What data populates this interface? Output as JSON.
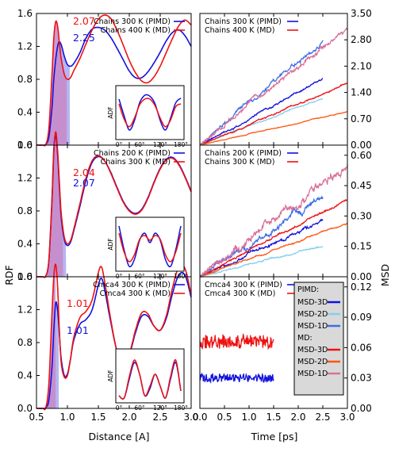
{
  "colors": {
    "blue": "#1111dd",
    "red": "#ee1111",
    "lightblue": "#87ceeb",
    "midblue": "#3d6ee6",
    "orange": "#ff5511",
    "pink": "#d9709a",
    "fill_red": "#c888c8",
    "fill_blue": "#a8a8ee",
    "legend_box": "#d9d9d9"
  },
  "labels": {
    "rdf_ylabel": "RDF",
    "msd_ylabel": "MSD",
    "distance_xlabel": "Distance [A]",
    "time_xlabel": "Time [ps]",
    "adf_label": "ADF"
  },
  "chart_data": [
    {
      "type": "line",
      "panel": "rdf-top",
      "xlim": [
        0.5,
        3.0
      ],
      "ylim": [
        0.0,
        1.6
      ],
      "xticks": [
        "0.5",
        "1.0",
        "1.5",
        "2.0",
        "2.5",
        "3.0"
      ],
      "yticks": [
        "0.0",
        "0.4",
        "0.8",
        "1.2",
        "1.6"
      ],
      "legend": [
        "Chains 300 K (PIMD)",
        "Chains 400 K (MD)"
      ],
      "annotations": [
        {
          "text": "2.07",
          "color": "red"
        },
        {
          "text": "2.25",
          "color": "blue"
        }
      ],
      "series": [
        {
          "name": "Chains 300 K (PIMD)",
          "x": [
            0.5,
            0.6,
            0.65,
            0.7,
            0.75,
            0.78,
            0.82,
            0.86,
            0.9,
            0.95,
            1.0,
            1.05,
            1.1,
            1.2,
            1.3,
            1.4,
            1.5,
            1.6,
            1.7,
            1.8,
            1.9,
            2.0,
            2.1,
            2.2,
            2.3,
            2.4,
            2.5,
            2.6,
            2.7,
            2.8,
            2.9,
            3.0
          ],
          "y": [
            0.0,
            0.0,
            0.01,
            0.1,
            0.45,
            0.8,
            1.1,
            1.25,
            1.22,
            1.08,
            0.98,
            0.96,
            0.99,
            1.12,
            1.3,
            1.41,
            1.43,
            1.4,
            1.31,
            1.18,
            1.04,
            0.9,
            0.82,
            0.82,
            0.89,
            1.0,
            1.13,
            1.27,
            1.37,
            1.4,
            1.33,
            1.2
          ]
        },
        {
          "name": "Chains 400 K (MD)",
          "x": [
            0.5,
            0.6,
            0.65,
            0.7,
            0.75,
            0.78,
            0.81,
            0.84,
            0.87,
            0.9,
            0.95,
            1.0,
            1.05,
            1.1,
            1.2,
            1.3,
            1.4,
            1.5,
            1.6,
            1.7,
            1.8,
            1.9,
            2.0,
            2.1,
            2.2,
            2.3,
            2.4,
            2.5,
            2.6,
            2.7,
            2.8,
            2.9,
            3.0
          ],
          "y": [
            0.0,
            0.0,
            0.01,
            0.2,
            0.85,
            1.3,
            1.5,
            1.45,
            1.25,
            1.05,
            0.86,
            0.8,
            0.82,
            0.9,
            1.05,
            1.23,
            1.4,
            1.53,
            1.58,
            1.54,
            1.4,
            1.22,
            1.03,
            0.88,
            0.78,
            0.76,
            0.83,
            0.96,
            1.13,
            1.3,
            1.45,
            1.52,
            1.46
          ]
        }
      ],
      "inset": {
        "xticks": [
          "0°",
          "60°",
          "120°",
          "180°"
        ],
        "series": [
          {
            "name": "blue",
            "x": [
              0,
              15,
              30,
              45,
              60,
              75,
              90,
              105,
              120,
              135,
              150,
              165,
              180
            ],
            "y": [
              0.8,
              0.45,
              0.15,
              0.35,
              0.72,
              0.88,
              0.86,
              0.7,
              0.35,
              0.15,
              0.4,
              0.72,
              0.82
            ]
          },
          {
            "name": "red",
            "x": [
              0,
              15,
              30,
              45,
              60,
              75,
              90,
              105,
              120,
              135,
              150,
              165,
              180
            ],
            "y": [
              0.7,
              0.38,
              0.22,
              0.4,
              0.68,
              0.8,
              0.8,
              0.66,
              0.4,
              0.22,
              0.36,
              0.64,
              0.7
            ]
          }
        ]
      }
    },
    {
      "type": "line",
      "panel": "rdf-middle",
      "xlim": [
        0.5,
        3.0
      ],
      "ylim": [
        0.0,
        1.6
      ],
      "xticks": [
        "0.5",
        "1.0",
        "1.5",
        "2.0",
        "2.5",
        "3.0"
      ],
      "yticks": [
        "0.0",
        "0.4",
        "0.8",
        "1.2",
        "1.6"
      ],
      "legend": [
        "Chains 200 K (PIMD)",
        "Chains 300 K (MD)"
      ],
      "annotations": [
        {
          "text": "2.04",
          "color": "red"
        },
        {
          "text": "2.07",
          "color": "blue"
        }
      ],
      "series": [
        {
          "name": "Chains 200 K (PIMD)",
          "x": [
            0.5,
            0.6,
            0.65,
            0.7,
            0.75,
            0.78,
            0.81,
            0.84,
            0.87,
            0.9,
            0.95,
            1.0,
            1.05,
            1.1,
            1.2,
            1.3,
            1.4,
            1.5,
            1.6,
            1.7,
            1.8,
            1.9,
            2.0,
            2.1,
            2.2,
            2.3,
            2.4,
            2.5,
            2.6,
            2.7,
            2.8,
            2.9,
            3.0
          ],
          "y": [
            0.0,
            0.0,
            0.01,
            0.2,
            0.95,
            1.55,
            1.72,
            1.5,
            1.1,
            0.72,
            0.45,
            0.38,
            0.42,
            0.55,
            0.85,
            1.17,
            1.39,
            1.46,
            1.41,
            1.27,
            1.09,
            0.92,
            0.81,
            0.77,
            0.82,
            0.96,
            1.15,
            1.32,
            1.43,
            1.45,
            1.37,
            1.22,
            1.04
          ]
        },
        {
          "name": "Chains 300 K (MD)",
          "x": [
            0.5,
            0.6,
            0.65,
            0.7,
            0.75,
            0.78,
            0.81,
            0.84,
            0.87,
            0.9,
            0.95,
            1.0,
            1.05,
            1.1,
            1.2,
            1.3,
            1.4,
            1.5,
            1.6,
            1.7,
            1.8,
            1.9,
            2.0,
            2.1,
            2.2,
            2.3,
            2.4,
            2.5,
            2.6,
            2.7,
            2.8,
            2.9,
            3.0
          ],
          "y": [
            0.0,
            0.0,
            0.01,
            0.2,
            0.9,
            1.5,
            1.76,
            1.55,
            1.15,
            0.77,
            0.48,
            0.4,
            0.44,
            0.57,
            0.88,
            1.2,
            1.41,
            1.47,
            1.41,
            1.26,
            1.08,
            0.91,
            0.8,
            0.76,
            0.81,
            0.95,
            1.14,
            1.31,
            1.42,
            1.44,
            1.36,
            1.21,
            1.03
          ]
        }
      ],
      "inset": {
        "xticks": [
          "0°",
          "60°",
          "120°",
          "180°"
        ],
        "series": [
          {
            "name": "blue",
            "x": [
              0,
              15,
              30,
              45,
              60,
              75,
              90,
              105,
              120,
              135,
              150,
              165,
              180
            ],
            "y": [
              0.9,
              0.4,
              0.05,
              0.2,
              0.6,
              0.75,
              0.55,
              0.75,
              0.6,
              0.2,
              0.05,
              0.4,
              0.9
            ]
          },
          {
            "name": "red",
            "x": [
              0,
              15,
              30,
              45,
              60,
              75,
              90,
              105,
              120,
              135,
              150,
              165,
              180
            ],
            "y": [
              0.75,
              0.35,
              0.15,
              0.3,
              0.62,
              0.7,
              0.6,
              0.7,
              0.62,
              0.3,
              0.15,
              0.35,
              0.75
            ]
          }
        ]
      }
    },
    {
      "type": "line",
      "panel": "rdf-bottom",
      "xlim": [
        0.5,
        3.0
      ],
      "ylim": [
        0.0,
        1.6
      ],
      "xticks": [
        "0.5",
        "1.0",
        "1.5",
        "2.0",
        "2.5",
        "3.0"
      ],
      "yticks": [
        "0.0",
        "0.4",
        "0.8",
        "1.2",
        "1.6"
      ],
      "legend": [
        "Cmca4 300 K (PIMD)",
        "Cmca4 300 K (MD)"
      ],
      "annotations": [
        {
          "text": "1.01",
          "color": "red"
        },
        {
          "text": "1.01",
          "color": "blue"
        }
      ],
      "series": [
        {
          "name": "Cmca4 300 K (PIMD)",
          "x": [
            0.5,
            0.6,
            0.65,
            0.7,
            0.75,
            0.78,
            0.81,
            0.84,
            0.87,
            0.9,
            0.95,
            1.0,
            1.05,
            1.1,
            1.2,
            1.3,
            1.4,
            1.5,
            1.55,
            1.6,
            1.7,
            1.8,
            1.9,
            2.0,
            2.1,
            2.2,
            2.3,
            2.4,
            2.5,
            2.6,
            2.7,
            2.8,
            2.9,
            3.0
          ],
          "y": [
            0.0,
            0.0,
            0.01,
            0.1,
            0.5,
            0.95,
            1.28,
            1.2,
            0.9,
            0.6,
            0.4,
            0.42,
            0.6,
            0.82,
            1.02,
            1.08,
            1.2,
            1.5,
            1.58,
            1.45,
            1.05,
            0.7,
            0.55,
            0.65,
            0.92,
            1.12,
            1.12,
            1.0,
            0.95,
            1.1,
            1.4,
            1.62,
            1.62,
            1.35
          ]
        },
        {
          "name": "Cmca4 300 K (MD)",
          "x": [
            0.5,
            0.6,
            0.65,
            0.7,
            0.75,
            0.78,
            0.81,
            0.84,
            0.87,
            0.9,
            0.95,
            1.0,
            1.05,
            1.1,
            1.2,
            1.3,
            1.4,
            1.5,
            1.55,
            1.6,
            1.7,
            1.8,
            1.9,
            2.0,
            2.1,
            2.2,
            2.3,
            2.4,
            2.5,
            2.6,
            2.7,
            2.8,
            2.9,
            3.0
          ],
          "y": [
            0.0,
            0.0,
            0.01,
            0.3,
            1.15,
            1.6,
            1.75,
            1.5,
            0.95,
            0.55,
            0.38,
            0.4,
            0.6,
            0.85,
            1.1,
            1.18,
            1.32,
            1.65,
            1.72,
            1.55,
            1.08,
            0.7,
            0.55,
            0.66,
            0.95,
            1.16,
            1.15,
            1.0,
            0.95,
            1.13,
            1.47,
            1.72,
            1.7,
            1.38
          ]
        }
      ],
      "inset": {
        "xticks": [
          "0°",
          "60°",
          "120°",
          "180°"
        ],
        "series": [
          {
            "name": "blue",
            "x": [
              0,
              15,
              30,
              45,
              60,
              75,
              90,
              105,
              120,
              135,
              150,
              165,
              180
            ],
            "y": [
              0.1,
              0.05,
              0.45,
              0.8,
              0.55,
              0.1,
              0.25,
              0.55,
              0.3,
              0.05,
              0.45,
              0.8,
              0.2
            ]
          },
          {
            "name": "red",
            "x": [
              0,
              15,
              30,
              45,
              60,
              75,
              90,
              105,
              120,
              135,
              150,
              165,
              180
            ],
            "y": [
              0.1,
              0.05,
              0.5,
              0.85,
              0.55,
              0.1,
              0.3,
              0.55,
              0.3,
              0.05,
              0.5,
              0.85,
              0.2
            ]
          }
        ]
      }
    },
    {
      "type": "line",
      "panel": "msd-top",
      "xlim": [
        0.0,
        3.0
      ],
      "ylim": [
        0.0,
        3.5
      ],
      "xticks": [
        "0.0",
        "0.5",
        "1.0",
        "1.5",
        "2.0",
        "2.5",
        "3.0"
      ],
      "yticks": [
        "0.00",
        "0.70",
        "1.40",
        "2.10",
        "2.80",
        "3.50"
      ],
      "legend": [
        "Chains 300 K (PIMD)",
        "Chains 400 K (MD)"
      ],
      "series": [
        {
          "name": "MSD-3D PIMD",
          "color": "blue",
          "tmax": 2.5,
          "end": 1.75,
          "noise": 0.05
        },
        {
          "name": "MSD-2D PIMD",
          "color": "lightblue",
          "tmax": 2.5,
          "end": 1.25,
          "noise": 0.03
        },
        {
          "name": "MSD-1D PIMD",
          "color": "midblue",
          "tmax": 2.5,
          "end": 2.75,
          "noise": 0.1
        },
        {
          "name": "MSD-3D MD",
          "color": "red",
          "tmax": 3.0,
          "end": 1.65,
          "noise": 0.04
        },
        {
          "name": "MSD-2D MD",
          "color": "orange",
          "tmax": 3.0,
          "end": 0.9,
          "noise": 0.02
        },
        {
          "name": "MSD-1D MD",
          "color": "pink",
          "tmax": 3.0,
          "end": 3.2,
          "noise": 0.12
        }
      ]
    },
    {
      "type": "line",
      "panel": "msd-middle",
      "xlim": [
        0.0,
        3.0
      ],
      "ylim": [
        0.0,
        0.65
      ],
      "xticks": [
        "0.0",
        "0.5",
        "1.0",
        "1.5",
        "2.0",
        "2.5",
        "3.0"
      ],
      "yticks": [
        "0.00",
        "0.15",
        "0.30",
        "0.45",
        "0.60"
      ],
      "legend": [
        "Chains 200 K (PIMD)",
        "Chains 300 K (MD)"
      ],
      "series": [
        {
          "name": "MSD-3D PIMD",
          "color": "blue",
          "tmax": 2.5,
          "end": 0.28,
          "noise": 0.015
        },
        {
          "name": "MSD-2D PIMD",
          "color": "lightblue",
          "tmax": 2.5,
          "end": 0.15,
          "noise": 0.008
        },
        {
          "name": "MSD-1D PIMD",
          "color": "midblue",
          "tmax": 2.5,
          "end": 0.4,
          "noise": 0.03
        },
        {
          "name": "MSD-3D MD",
          "color": "red",
          "tmax": 3.0,
          "end": 0.38,
          "noise": 0.01
        },
        {
          "name": "MSD-2D MD",
          "color": "orange",
          "tmax": 3.0,
          "end": 0.26,
          "noise": 0.008
        },
        {
          "name": "MSD-1D MD",
          "color": "pink",
          "tmax": 3.0,
          "end": 0.55,
          "noise": 0.04
        }
      ]
    },
    {
      "type": "line",
      "panel": "msd-bottom",
      "xlim": [
        0.0,
        3.0
      ],
      "ylim": [
        0.0,
        0.13
      ],
      "xticks": [
        "0.0",
        "0.5",
        "1.0",
        "1.5",
        "2.0",
        "2.5",
        "3.0"
      ],
      "yticks": [
        "0.00",
        "0.03",
        "0.06",
        "0.09",
        "0.12"
      ],
      "legend": [
        "Cmca4 300 K (PIMD)",
        "Cmca4 300 K (MD)"
      ],
      "key": {
        "pimd_header": "PIMD:",
        "md_header": "MD:",
        "entries": [
          {
            "label": "MSD-3D",
            "color": "blue"
          },
          {
            "label": "MSD-2D",
            "color": "lightblue"
          },
          {
            "label": "MSD-1D",
            "color": "midblue"
          },
          {
            "label": "MSD-3D",
            "color": "red"
          },
          {
            "label": "MSD-2D",
            "color": "orange"
          },
          {
            "label": "MSD-1D",
            "color": "pink"
          }
        ]
      },
      "series": [
        {
          "name": "MSD-3D MD",
          "color": "red",
          "tmax": 1.5,
          "level": 0.066,
          "noise": 0.007
        },
        {
          "name": "MSD-3D PIMD",
          "color": "blue",
          "tmax": 1.5,
          "level": 0.03,
          "noise": 0.004
        }
      ]
    }
  ]
}
